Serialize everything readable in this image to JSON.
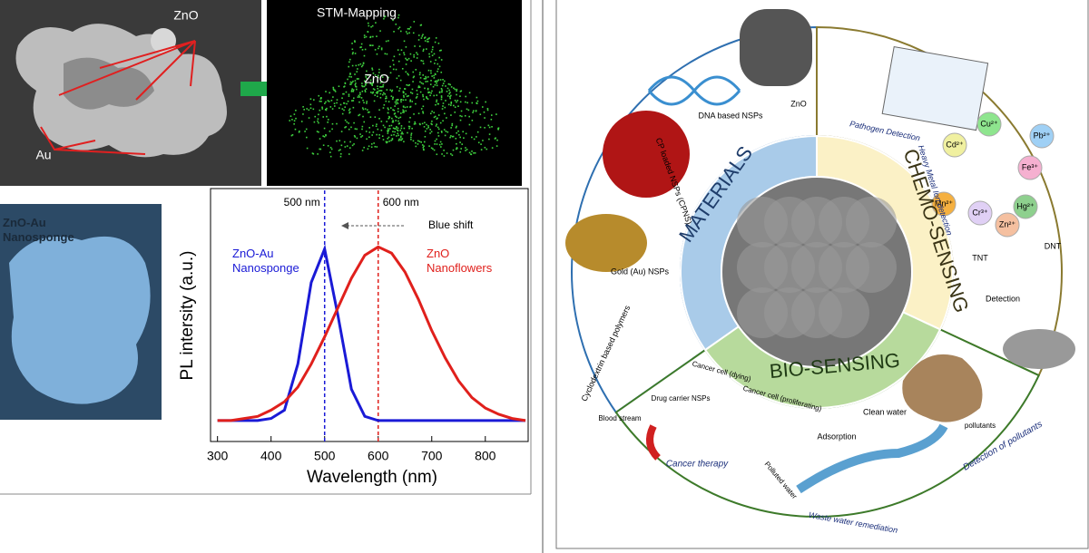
{
  "chart_data": {
    "type": "line",
    "xlabel": "Wavelength (nm)",
    "ylabel": "PL intersity (a.u.)",
    "x": [
      300,
      325,
      350,
      375,
      400,
      425,
      450,
      475,
      500,
      525,
      550,
      575,
      600,
      625,
      650,
      675,
      700,
      725,
      750,
      775,
      800,
      825,
      850,
      875
    ],
    "series": [
      {
        "name": "ZnO-Au Nanosponge",
        "color": "#1a1ad6",
        "values": [
          0.1,
          0.1,
          0.1,
          0.1,
          0.11,
          0.15,
          0.37,
          0.76,
          0.92,
          0.6,
          0.25,
          0.12,
          0.1,
          0.1,
          0.1,
          0.1,
          0.1,
          0.1,
          0.1,
          0.1,
          0.1,
          0.1,
          0.1,
          0.1
        ]
      },
      {
        "name": "ZnO Nanoflowers",
        "color": "#e0201c",
        "values": [
          0.1,
          0.1,
          0.11,
          0.12,
          0.15,
          0.19,
          0.26,
          0.37,
          0.5,
          0.64,
          0.78,
          0.89,
          0.93,
          0.9,
          0.81,
          0.68,
          0.53,
          0.4,
          0.29,
          0.21,
          0.16,
          0.13,
          0.11,
          0.1
        ]
      }
    ],
    "xlim": [
      287,
      880
    ],
    "xticks": [
      300,
      400,
      500,
      600,
      700,
      800
    ],
    "ylim": [
      0,
      1.2
    ],
    "markers": [
      {
        "x": 500,
        "label": "500 nm"
      },
      {
        "x": 600,
        "label": "600 nm"
      }
    ],
    "annotation": "Blue shift"
  },
  "left_figure": {
    "sem_labels": [
      "ZnO",
      "Au"
    ],
    "mapping_title": "STM-Mapping",
    "mapping_label": "ZnO",
    "sponge_label": "ZnO-Au Nanosponge"
  },
  "right_figure": {
    "sectors": [
      "MATERIALS",
      "CHEMO-SENSING",
      "BIO-SENSING"
    ],
    "materials_items": [
      "ZnO",
      "DNA based NSPs",
      "CP loaded NSPs (CPNS)",
      "Gold (Au) NSPs",
      "Cyclodextrin based polymers"
    ],
    "chemo_items": [
      "Pathogen Detection",
      "Heavy Metal Ion detection",
      "TNT",
      "DNT",
      "Detection"
    ],
    "ions": [
      "Cu²⁺",
      "Pb²⁺",
      "Cd²⁺",
      "Fe³⁺",
      "Mn²⁺",
      "Hg²⁺",
      "Cr³⁺",
      "Zn²⁺"
    ],
    "bio_items": [
      "Blood stream",
      "Drug carrier NSPs",
      "Cancer cell (dying)",
      "Cancer cell (proliferating)",
      "Cancer therapy",
      "Adsorption",
      "Clean water",
      "Polluted water",
      "Waste water remediation",
      "pollutants",
      "Detection of pollutants"
    ]
  }
}
